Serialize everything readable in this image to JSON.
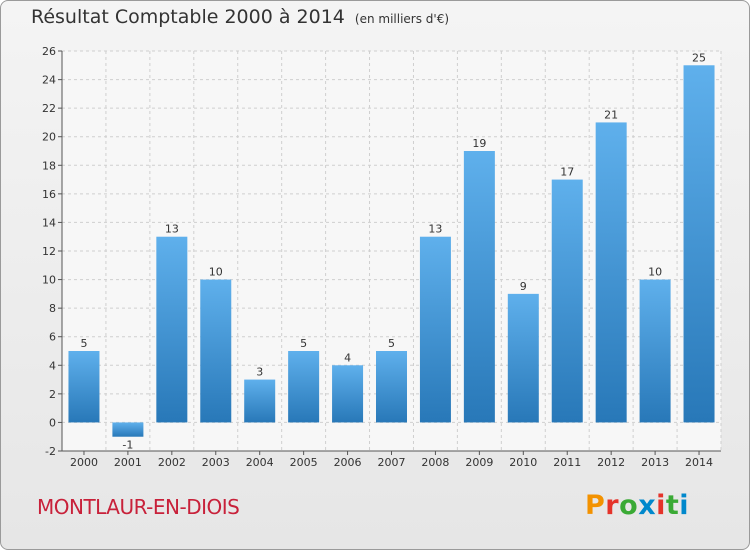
{
  "header": {
    "title": "Résultat Comptable 2000 à 2014",
    "subtitle": "(en milliers d'€)"
  },
  "footer": {
    "commune": "MONTLAUR-EN-DIOIS",
    "brand": "Proxiti",
    "brand_colors": [
      "#f39200",
      "#e5332a",
      "#3aaa35",
      "#0088cc",
      "#e5332a",
      "#3aaa35",
      "#0088cc"
    ]
  },
  "chart_data": {
    "type": "bar",
    "title": "Résultat Comptable 2000 à 2014",
    "subtitle": "(en milliers d'€)",
    "categories": [
      "2000",
      "2001",
      "2002",
      "2003",
      "2004",
      "2005",
      "2006",
      "2007",
      "2008",
      "2009",
      "2010",
      "2011",
      "2012",
      "2013",
      "2014"
    ],
    "values": [
      5,
      -1,
      13,
      10,
      3,
      5,
      4,
      5,
      13,
      19,
      9,
      17,
      21,
      10,
      25
    ],
    "value_labels": [
      "5",
      "-1",
      "13",
      "10",
      "3",
      "5",
      "4",
      "5",
      "13",
      "19",
      "9",
      "17",
      "21",
      "10",
      "25"
    ],
    "yticks": [
      "-2",
      "0",
      "2",
      "4",
      "6",
      "8",
      "10",
      "12",
      "14",
      "16",
      "18",
      "20",
      "22",
      "24",
      "26"
    ],
    "ylim": [
      -2,
      26
    ],
    "grid": true,
    "bar_color_light": "#5fb0ec",
    "bar_color_dark": "#2878b8"
  }
}
